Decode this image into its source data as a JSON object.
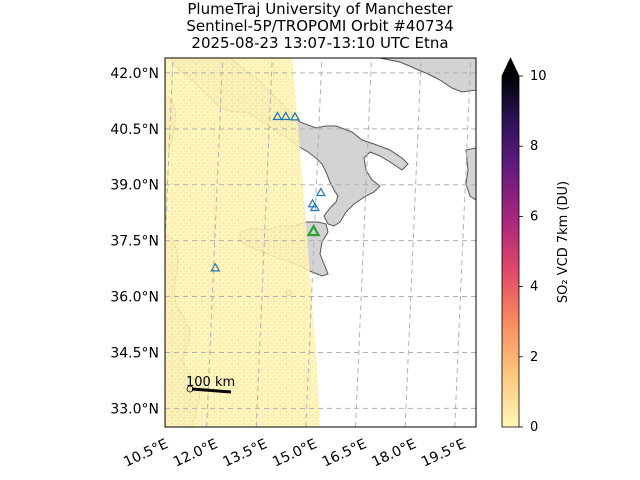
{
  "title": {
    "line1": "PlumeTraj    University of Manchester",
    "line2": "Sentinel-5P/TROPOMI Orbit #40734",
    "line3": "2025-08-23    13:07-13:10 UTC   Etna"
  },
  "map": {
    "lon_range": [
      10.5,
      19.9
    ],
    "lat_range": [
      32.5,
      42.4
    ],
    "lat_ticks": [
      {
        "value": 42.0,
        "label": "42.0°N"
      },
      {
        "value": 40.5,
        "label": "40.5°N"
      },
      {
        "value": 39.0,
        "label": "39.0°N"
      },
      {
        "value": 37.5,
        "label": "37.5°N"
      },
      {
        "value": 36.0,
        "label": "36.0°N"
      },
      {
        "value": 34.5,
        "label": "34.5°N"
      },
      {
        "value": 33.0,
        "label": "33.0°N"
      }
    ],
    "lon_ticks": [
      {
        "value": 10.5,
        "label": "10.5°E"
      },
      {
        "value": 12.0,
        "label": "12.0°E"
      },
      {
        "value": 13.5,
        "label": "13.5°E"
      },
      {
        "value": 15.0,
        "label": "15.0°E"
      },
      {
        "value": 16.5,
        "label": "16.5°E"
      },
      {
        "value": 18.0,
        "label": "18.0°E"
      },
      {
        "value": 19.5,
        "label": "19.5°E"
      }
    ],
    "scale_bar_label": "100 km",
    "target_volcano": {
      "name": "Etna",
      "lon": 14.99,
      "lat": 37.75
    },
    "other_volcanoes": [
      {
        "lon": 13.9,
        "lat": 40.83
      },
      {
        "lon": 14.15,
        "lat": 40.83
      },
      {
        "lon": 14.43,
        "lat": 40.82
      },
      {
        "lon": 14.96,
        "lat": 38.49
      },
      {
        "lon": 15.03,
        "lat": 38.39
      },
      {
        "lon": 15.21,
        "lat": 38.79
      },
      {
        "lon": 12.02,
        "lat": 36.77
      }
    ],
    "colors": {
      "land": "#d3d3d3",
      "coast": "#555555",
      "grid": "#b0b0b0",
      "swath": "#fff6b0",
      "target_marker": "#2ca02c",
      "volcano_marker": "#1f77b4"
    }
  },
  "colorbar": {
    "label": "SO₂ VCD 7km (DU)",
    "min": 0,
    "max": 10,
    "ticks": [
      0,
      2,
      4,
      6,
      8,
      10
    ],
    "extend": "max",
    "colormap": "magma_r"
  }
}
